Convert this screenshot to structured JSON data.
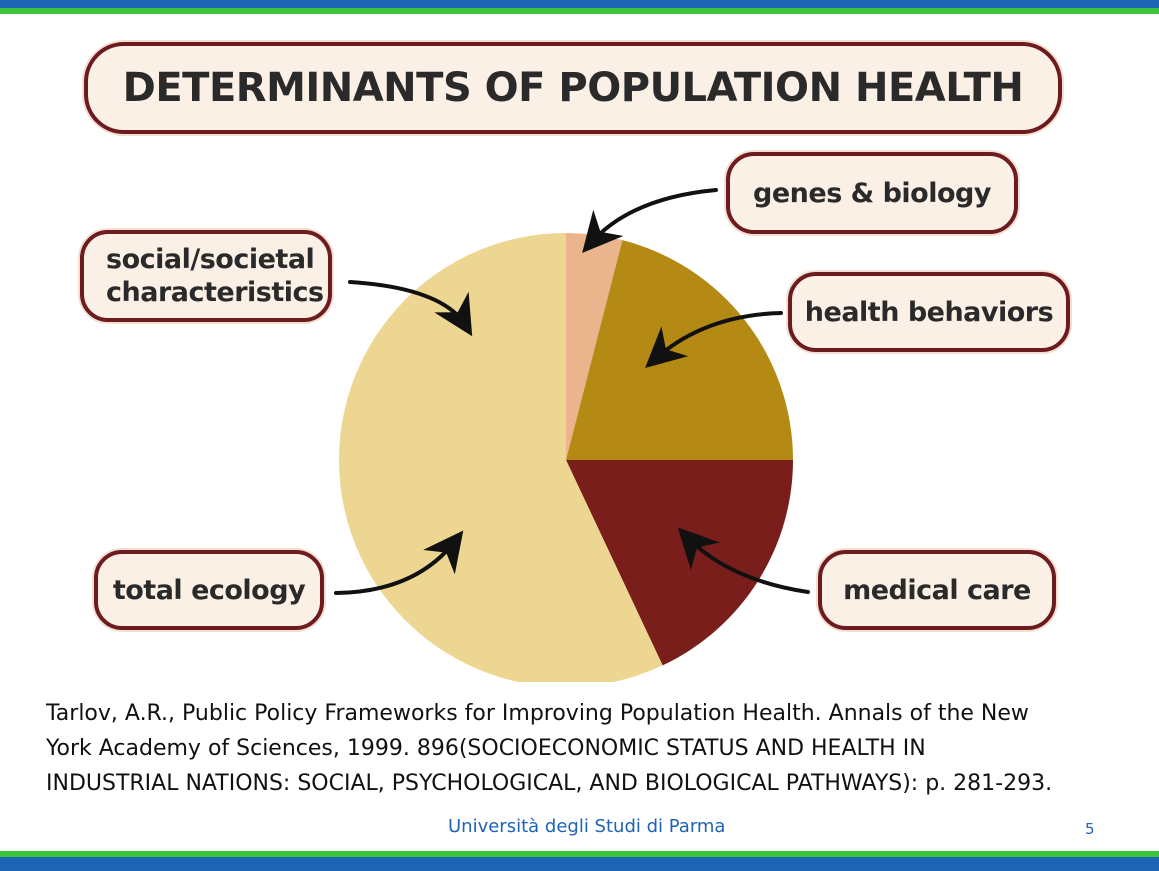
{
  "chart_data": {
    "type": "pie",
    "title": "DETERMINANTS OF POPULATION HEALTH",
    "slices": [
      {
        "label": "genes & biology",
        "value": 4,
        "color": "#eab48d"
      },
      {
        "label": "health behaviors",
        "value": 21,
        "color": "#b48a14"
      },
      {
        "label": "medical care",
        "value": 18,
        "color": "#7a1e1c"
      },
      {
        "label": "total ecology",
        "value": 57,
        "color": "#ecd691"
      }
    ],
    "annotations": [
      "social/societal characteristics"
    ]
  },
  "labels": {
    "social_line1": "social/societal",
    "social_line2": "characteristics",
    "genes": "genes & biology",
    "behaviors": "health behaviors",
    "medical": "medical care",
    "ecology": "total ecology"
  },
  "citation": {
    "line1": "Tarlov, A.R., Public Policy Frameworks for Improving Population Health. Annals of the New",
    "line2": "York Academy of Sciences, 1999. 896(SOCIOECONOMIC STATUS AND HEALTH IN",
    "line3": "INDUSTRIAL NATIONS: SOCIAL, PSYCHOLOGICAL, AND BIOLOGICAL PATHWAYS): p. 281-293."
  },
  "footer": {
    "university": "Università degli Studi di Parma",
    "page_number": "5"
  },
  "colors": {
    "brand_blue": "#1f63b5",
    "brand_green": "#3cc43c",
    "pill_border": "#6e1b1f",
    "pill_fill": "#fbf0e6"
  }
}
